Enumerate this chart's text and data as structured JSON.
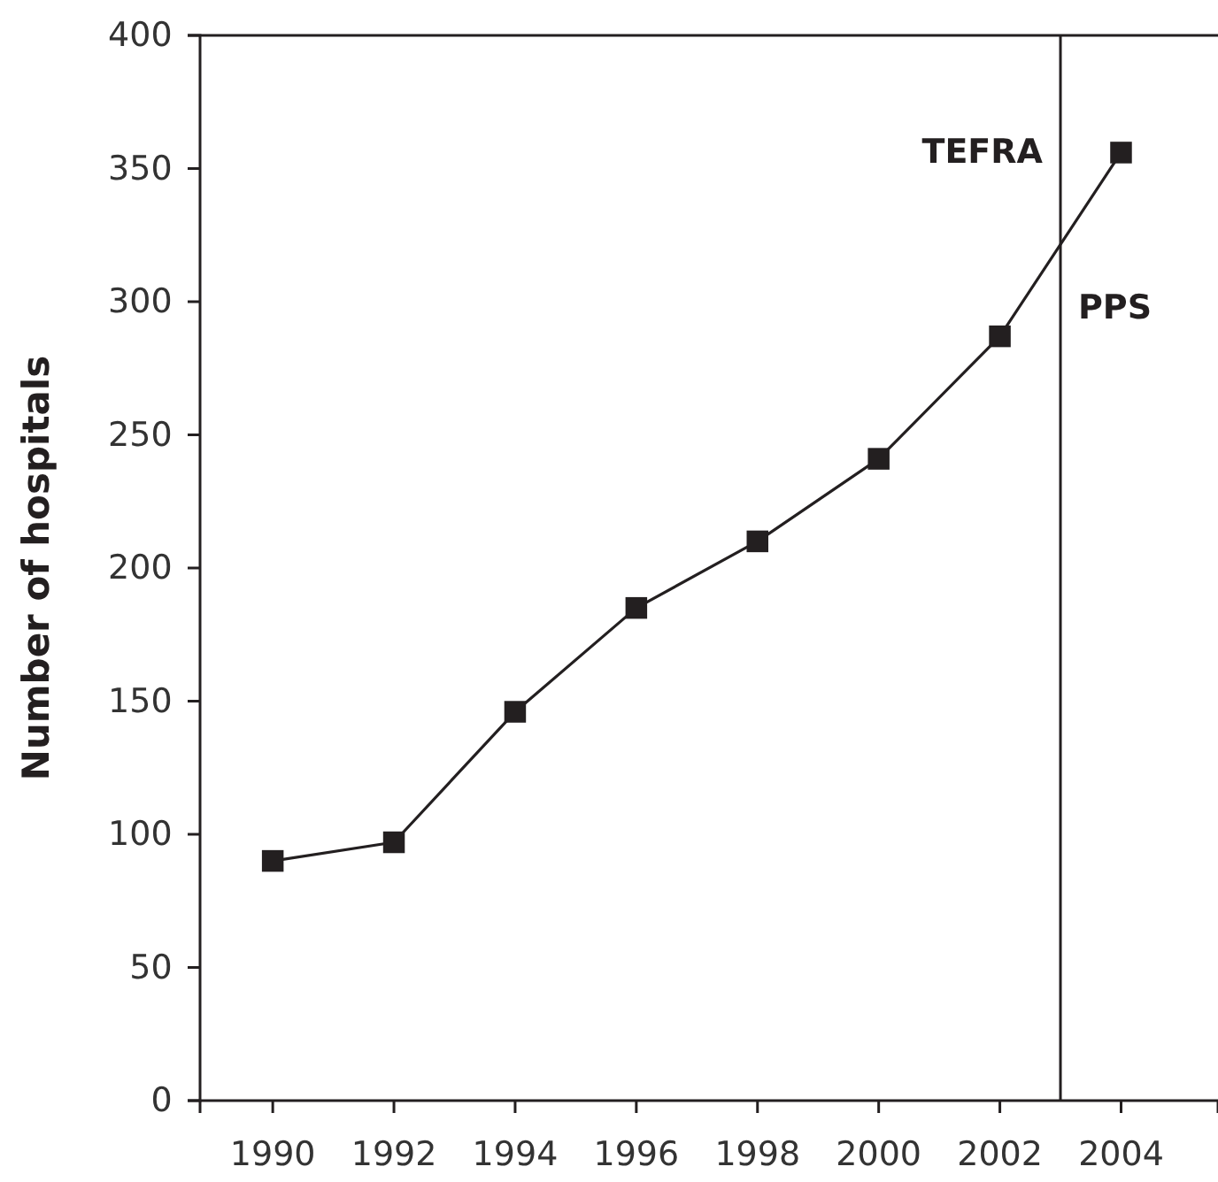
{
  "chart_data": {
    "type": "line",
    "ylabel": "Number of hospitals",
    "x": [
      1990,
      1992,
      1994,
      1996,
      1998,
      2000,
      2002,
      2004
    ],
    "series": [
      {
        "color": "#231f20",
        "values": [
          90,
          97,
          146,
          185,
          210,
          241,
          287,
          356
        ]
      }
    ],
    "xlim": [
      1988.8,
      2005.6
    ],
    "xticks": [
      1990,
      1992,
      1994,
      1996,
      1998,
      2000,
      2002,
      2004
    ],
    "ylim": [
      0,
      400
    ],
    "yticks": [
      0,
      50,
      100,
      150,
      200,
      250,
      300,
      350,
      400
    ],
    "marker": "square",
    "line_style": "solid",
    "grid": false,
    "ref_lines": [
      {
        "axis": "x",
        "value": 2003,
        "color": "#231f20"
      }
    ],
    "annotations": [
      "TEFRA",
      "PPS"
    ]
  }
}
